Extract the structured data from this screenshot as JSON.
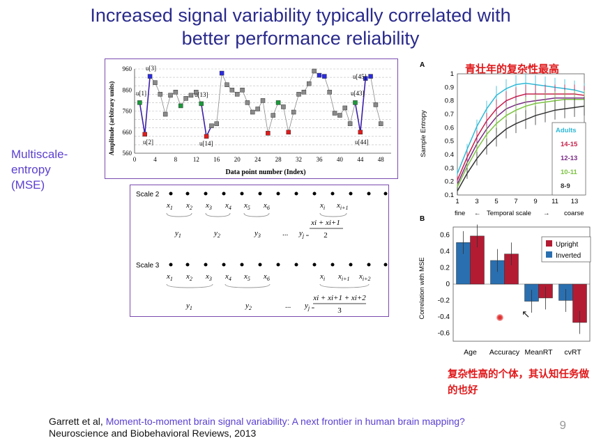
{
  "slide": {
    "title_line1": "Increased signal variability typically correlated with",
    "title_line2": "better performance reliability",
    "mse_label": "Multiscale-\nentropy\n(MSE)",
    "page_number": "9"
  },
  "signal_plot": {
    "ylabel": "Amplitude (arbitrary units)",
    "xlabel": "Data point number (Index)",
    "yticks": [
      "960",
      "860",
      "760",
      "660",
      "560"
    ],
    "xticks": [
      "0",
      "4",
      "8",
      "12",
      "16",
      "20",
      "24",
      "28",
      "32",
      "36",
      "40",
      "44",
      "48"
    ],
    "annotations": [
      "u[3]",
      "u[1]",
      "u[2]",
      "u[13]",
      "u[14]",
      "u[45]",
      "u[43]",
      "u[44]"
    ]
  },
  "coarse_graining": {
    "scale2": {
      "label": "Scale 2",
      "x": [
        "x1",
        "x2",
        "x3",
        "x4",
        "x5",
        "x6",
        "xi",
        "xi+1"
      ],
      "y": [
        "y1",
        "y2",
        "y3",
        "...",
        "yj ="
      ],
      "formula_num": "xi + xi+1",
      "formula_den": "2"
    },
    "scale3": {
      "label": "Scale 3",
      "x": [
        "x1",
        "x2",
        "x3",
        "x4",
        "x5",
        "x6",
        "xi",
        "xi+1",
        "xi+2"
      ],
      "y": [
        "y1",
        "y2",
        "...",
        "yj ="
      ],
      "formula_num": "xi + xi+1 + xi+2",
      "formula_den": "3"
    }
  },
  "panel_a": {
    "letter": "A",
    "annotation": "青壮年的复杂性最高",
    "ylabel": "Sample Entropy",
    "xlabel_left": "fine",
    "xlabel_mid": "Temporal scale",
    "xlabel_right": "coarse",
    "arrow_left": "←",
    "arrow_right": "→",
    "legend": [
      {
        "label": "Adults",
        "color": "#2fb8d6"
      },
      {
        "label": "14-15",
        "color": "#c8204a"
      },
      {
        "label": "12-13",
        "color": "#7a2a86"
      },
      {
        "label": "10-11",
        "color": "#7cc242"
      },
      {
        "label": "8-9",
        "color": "#333333"
      }
    ]
  },
  "panel_b": {
    "letter": "B",
    "ylabel": "Correlation with MSE",
    "legend": [
      {
        "label": "Upright",
        "color": "#b31b33"
      },
      {
        "label": "Inverted",
        "color": "#2a6fb0"
      }
    ],
    "annotation": "复杂性高的个体，其认知任务做的也好"
  },
  "footer": {
    "authors": "Garrett et al,",
    "title": "Moment-to-moment brain signal variability: A next frontier in human brain mapping?",
    "journal": "Neuroscience and Biobehavioral Reviews, 2013"
  },
  "chart_data": [
    {
      "type": "scatter",
      "xlabel": "Data point number (Index)",
      "ylabel": "Amplitude (arbitrary units)",
      "xlim": [
        0,
        50
      ],
      "ylim": [
        560,
        960
      ],
      "x": [
        1,
        2,
        3,
        4,
        5,
        6,
        7,
        8,
        9,
        10,
        11,
        12,
        13,
        14,
        15,
        16,
        17,
        18,
        19,
        20,
        21,
        22,
        23,
        24,
        25,
        26,
        27,
        28,
        29,
        30,
        31,
        32,
        33,
        34,
        35,
        36,
        37,
        38,
        39,
        40,
        41,
        42,
        43,
        44,
        45,
        46,
        47,
        48
      ],
      "y": [
        800,
        650,
        925,
        895,
        840,
        745,
        835,
        850,
        785,
        820,
        835,
        850,
        795,
        640,
        690,
        700,
        940,
        885,
        860,
        840,
        860,
        800,
        755,
        770,
        810,
        655,
        740,
        800,
        780,
        660,
        755,
        840,
        850,
        890,
        950,
        930,
        925,
        850,
        750,
        740,
        775,
        700,
        800,
        660,
        915,
        925,
        790,
        700
      ],
      "highlight_colors": {
        "1": "green",
        "2": "red",
        "3": "blue",
        "9": "green",
        "13": "green",
        "14": "red",
        "17": "blue",
        "26": "red",
        "28": "green",
        "30": "red",
        "36": "blue",
        "37": "blue",
        "43": "green",
        "44": "red",
        "45": "blue",
        "46": "blue"
      }
    },
    {
      "type": "line",
      "title": "青壮年的复杂性最高",
      "xlabel": "Temporal scale",
      "ylabel": "Sample Entropy",
      "x": [
        1,
        2,
        3,
        4,
        5,
        6,
        7,
        8,
        9,
        10,
        11,
        12,
        13,
        14
      ],
      "ylim": [
        0.1,
        1.0
      ],
      "series": [
        {
          "name": "Adults",
          "values": [
            0.26,
            0.44,
            0.61,
            0.74,
            0.84,
            0.89,
            0.92,
            0.93,
            0.92,
            0.91,
            0.9,
            0.89,
            0.88,
            0.86
          ]
        },
        {
          "name": "14-15",
          "values": [
            0.21,
            0.38,
            0.53,
            0.65,
            0.74,
            0.8,
            0.83,
            0.85,
            0.85,
            0.85,
            0.85,
            0.85,
            0.85,
            0.84
          ]
        },
        {
          "name": "12-13",
          "values": [
            0.18,
            0.34,
            0.48,
            0.59,
            0.68,
            0.74,
            0.77,
            0.79,
            0.8,
            0.81,
            0.82,
            0.82,
            0.82,
            0.82
          ]
        },
        {
          "name": "10-11",
          "values": [
            0.16,
            0.31,
            0.44,
            0.55,
            0.63,
            0.69,
            0.73,
            0.76,
            0.78,
            0.79,
            0.8,
            0.81,
            0.81,
            0.81
          ]
        },
        {
          "name": "8-9",
          "values": [
            0.13,
            0.26,
            0.37,
            0.46,
            0.53,
            0.59,
            0.63,
            0.66,
            0.69,
            0.71,
            0.73,
            0.74,
            0.75,
            0.76
          ]
        }
      ]
    },
    {
      "type": "bar",
      "ylabel": "Correlation with MSE",
      "categories": [
        "Age",
        "Accuracy",
        "MeanRT",
        "cvRT"
      ],
      "ylim": [
        -0.7,
        0.7
      ],
      "yticks": [
        0.6,
        0.4,
        0.2,
        0,
        -0.2,
        -0.4,
        -0.6
      ],
      "series": [
        {
          "name": "Inverted",
          "values": [
            0.51,
            0.29,
            -0.21,
            -0.2
          ]
        },
        {
          "name": "Upright",
          "values": [
            0.59,
            0.37,
            -0.17,
            -0.47
          ]
        }
      ]
    }
  ]
}
